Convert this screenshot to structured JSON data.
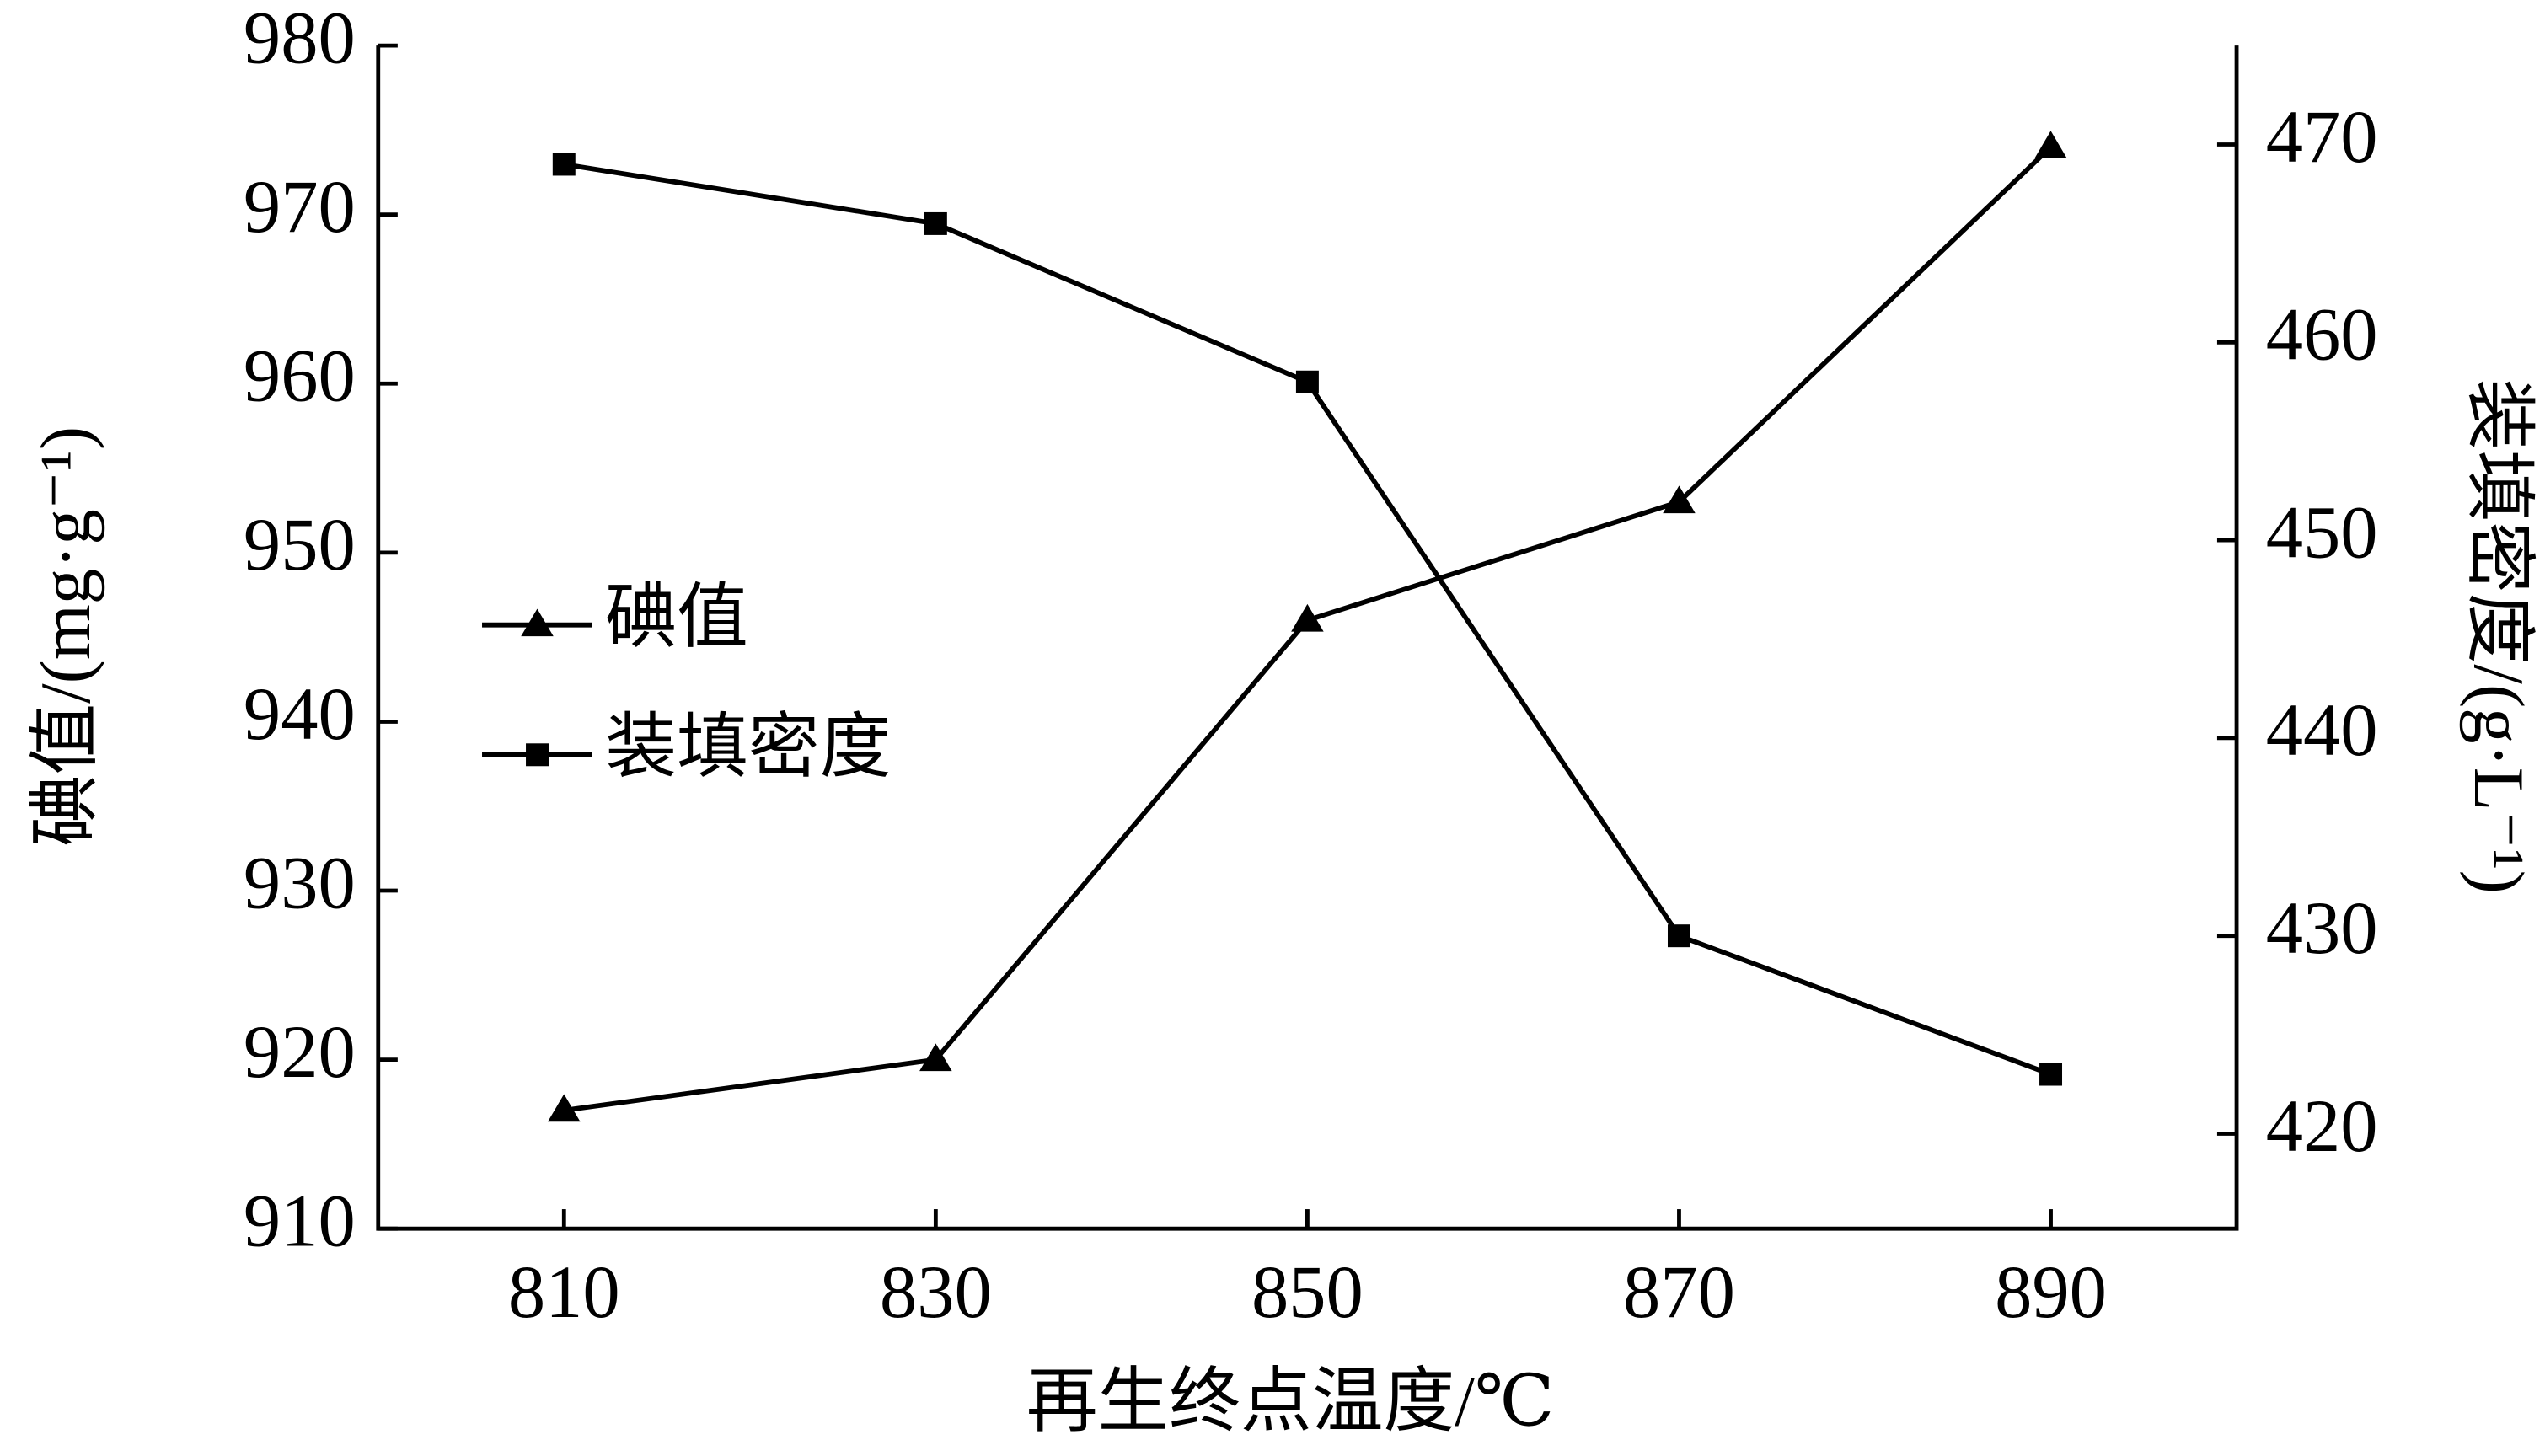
{
  "chart_data": {
    "type": "line",
    "x_label": "再生终点温度/℃",
    "y_label": "碘值/(mg·g⁻¹)",
    "y2_label": "装填密度/(g·L⁻¹)",
    "x": [
      810,
      830,
      850,
      870,
      890
    ],
    "xlim": [
      800,
      900
    ],
    "xticks": [
      810,
      830,
      850,
      870,
      890
    ],
    "ylim": [
      910,
      980
    ],
    "yticks": [
      910,
      920,
      930,
      940,
      950,
      960,
      970,
      980
    ],
    "y2lim": [
      415.2,
      475
    ],
    "y2ticks": [
      420,
      430,
      440,
      450,
      460,
      470
    ],
    "legend": "left",
    "series": [
      {
        "name": "碘值",
        "color": "#000000",
        "marker": "triangle",
        "values": [
          917,
          920,
          946,
          953,
          974
        ]
      },
      {
        "name": "装填密度",
        "color": "#000000",
        "marker": "square",
        "axis": "y2",
        "values": [
          469,
          466,
          458,
          430,
          423
        ]
      }
    ]
  }
}
